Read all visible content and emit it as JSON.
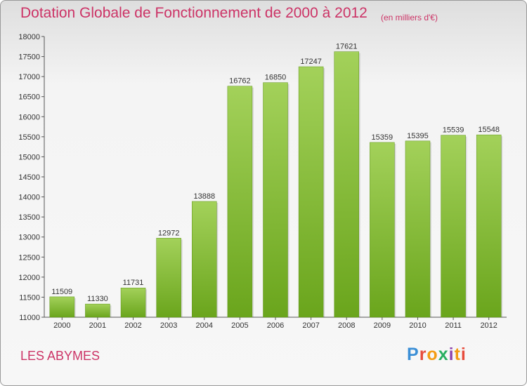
{
  "title": "Dotation Globale de Fonctionnement de 2000 à 2012",
  "subtitle": "(en milliers d'€)",
  "commune": "LES ABYMES",
  "logo": {
    "text": "Proxiti"
  },
  "colors": {
    "title": "#cc3366",
    "bar_top": "#a3d15a",
    "bar_bottom": "#6aa51c"
  },
  "chart_data": {
    "type": "bar",
    "title": "Dotation Globale de Fonctionnement de 2000 à 2012",
    "subtitle": "(en milliers d'€)",
    "categories": [
      "2000",
      "2001",
      "2002",
      "2003",
      "2004",
      "2005",
      "2006",
      "2007",
      "2008",
      "2009",
      "2010",
      "2011",
      "2012"
    ],
    "values": [
      11509,
      11330,
      11731,
      12972,
      13888,
      16762,
      16850,
      17247,
      17621,
      15359,
      15395,
      15539,
      15548
    ],
    "ylim": [
      11000,
      18000
    ],
    "yticks": [
      11000,
      11500,
      12000,
      12500,
      13000,
      13500,
      14000,
      14500,
      15000,
      15500,
      16000,
      16500,
      17000,
      17500,
      18000
    ],
    "grid": false,
    "legend": "none"
  }
}
